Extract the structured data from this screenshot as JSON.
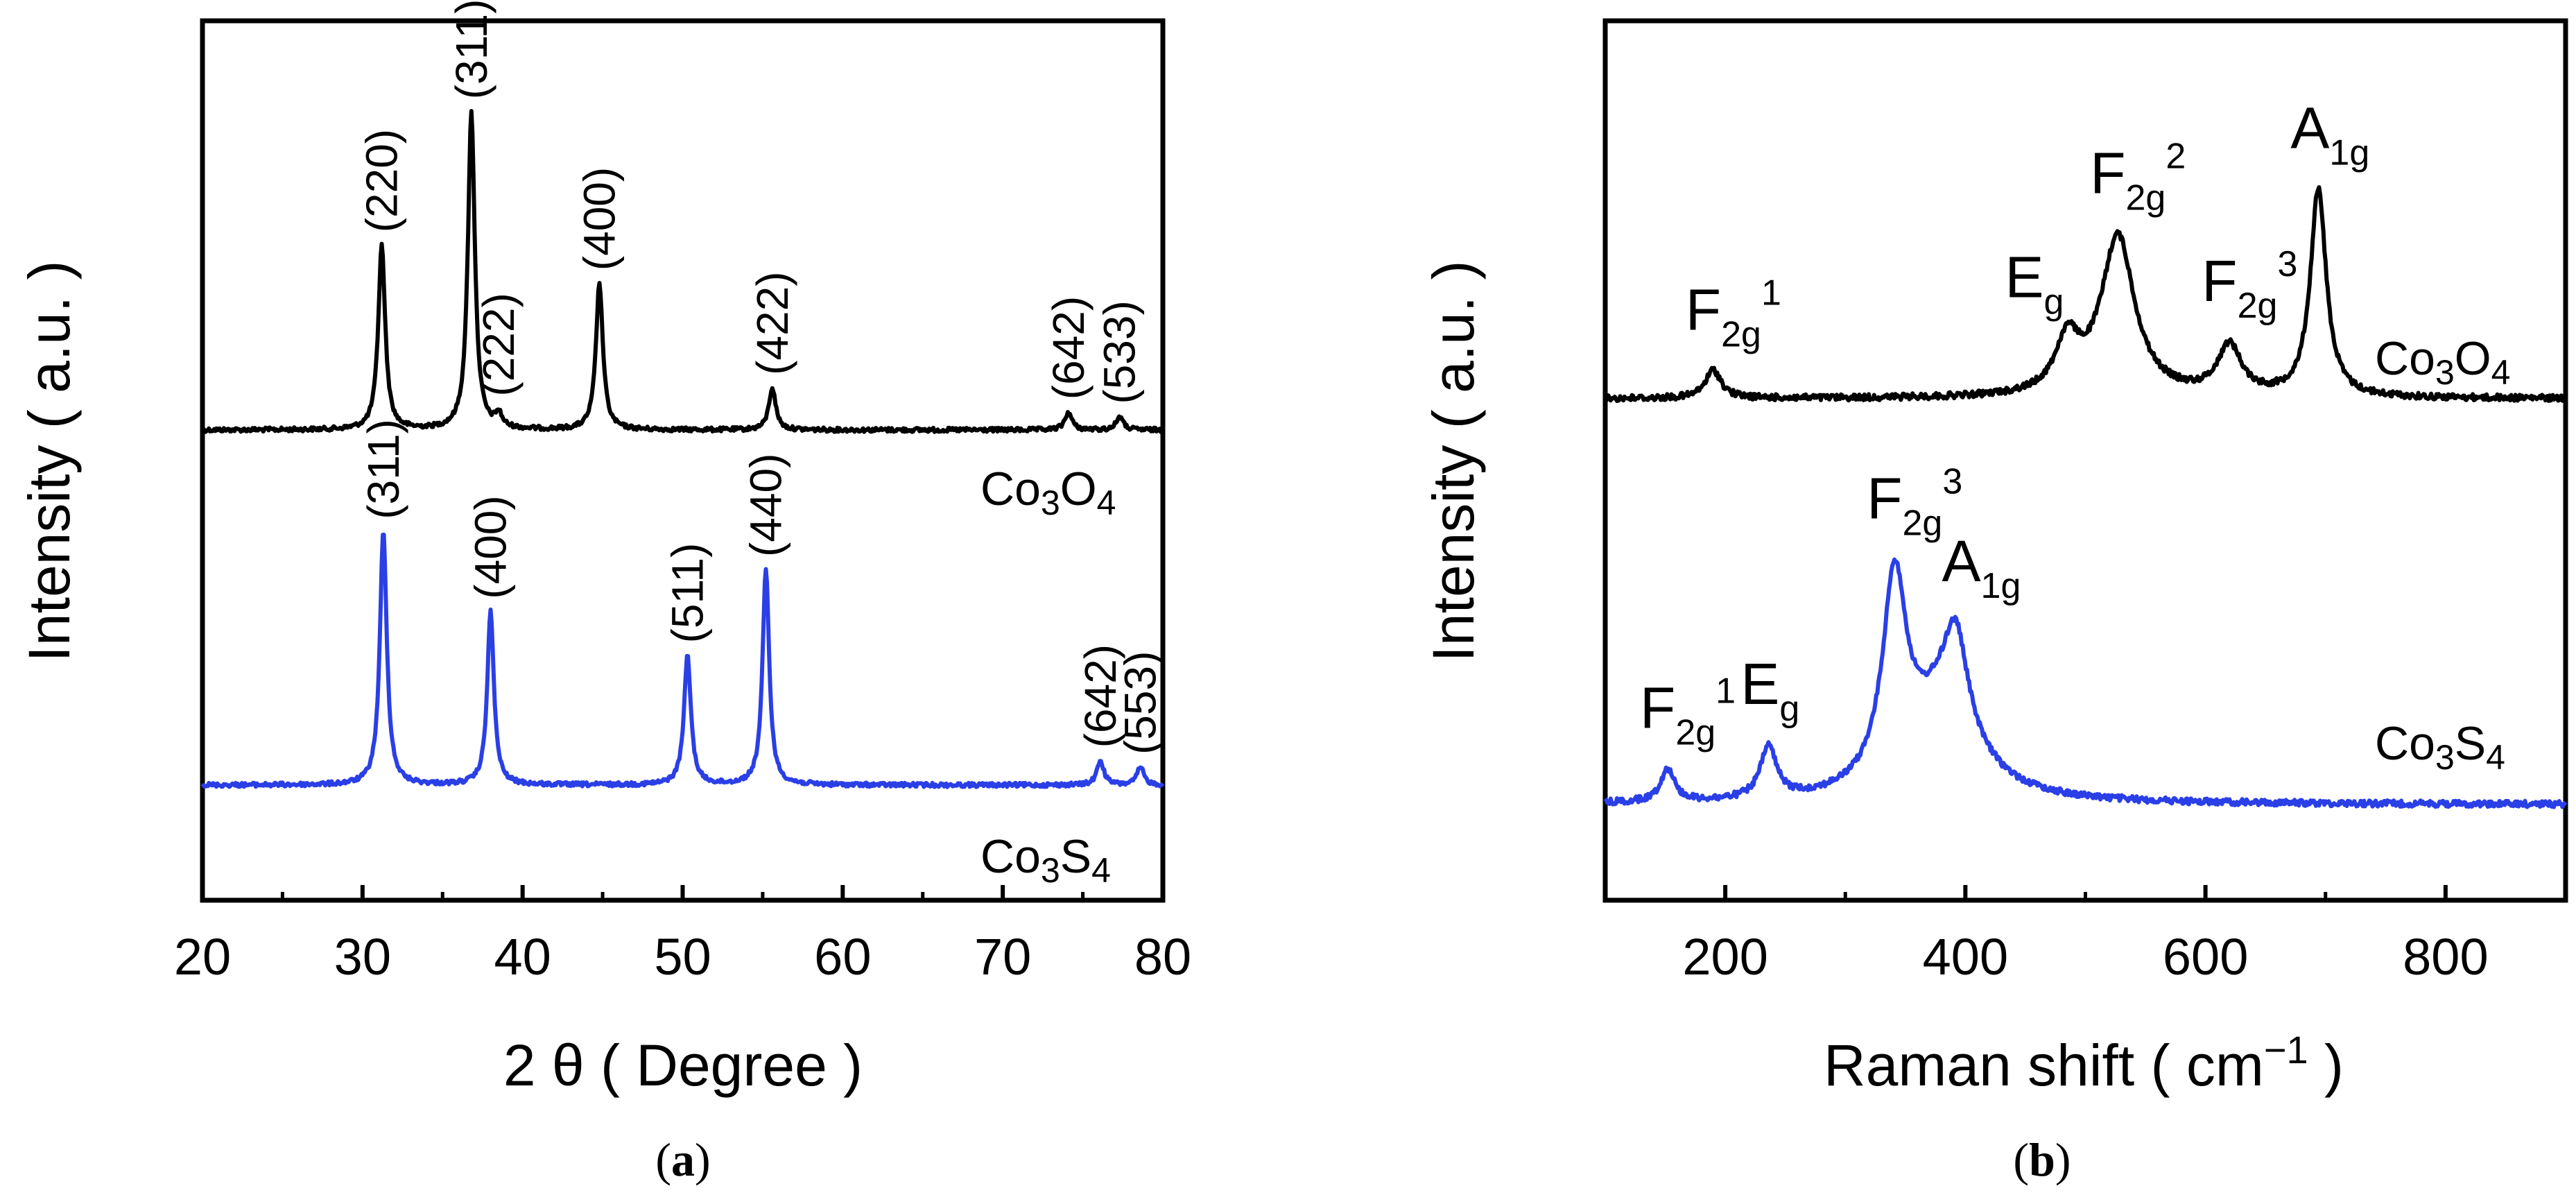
{
  "chart_data": [
    {
      "type": "line",
      "caption_letter": "a",
      "xlabel": "2 θ ( Degree )",
      "ylabel": "Intensity ( a.u. )",
      "xlim": [
        20,
        80
      ],
      "xticks": [
        20,
        30,
        40,
        50,
        60,
        70,
        80
      ],
      "xtick_labels": [
        "20",
        "30",
        "40",
        "50",
        "60",
        "70",
        "80"
      ],
      "series": [
        {
          "name": "Co3O4",
          "label": {
            "base": "Co",
            "n1": "3",
            "el2": "O",
            "n2": "4"
          },
          "color": "#000000",
          "baseline": 1.0,
          "peaks": [
            {
              "x": 31.2,
              "h": 0.83,
              "w": 0.26,
              "label": "(220)"
            },
            {
              "x": 36.8,
              "h": 1.43,
              "w": 0.26,
              "label": "(311)"
            },
            {
              "x": 38.5,
              "h": 0.06,
              "w": 0.25,
              "label": "(222)"
            },
            {
              "x": 44.8,
              "h": 0.66,
              "w": 0.26,
              "label": "(400)"
            },
            {
              "x": 55.6,
              "h": 0.19,
              "w": 0.26,
              "label": "(422)"
            },
            {
              "x": 74.1,
              "h": 0.08,
              "w": 0.26,
              "label": "(642)"
            },
            {
              "x": 77.3,
              "h": 0.06,
              "w": 0.26,
              "label": "(533)"
            }
          ]
        },
        {
          "name": "Co3S4",
          "label": {
            "base": "Co",
            "n1": "3",
            "el2": "S",
            "n2": "4"
          },
          "color": "#2a3fe6",
          "baseline": 0.0,
          "peaks": [
            {
              "x": 31.3,
              "h": 1.14,
              "w": 0.26,
              "label": "(311)"
            },
            {
              "x": 38.0,
              "h": 0.78,
              "w": 0.25,
              "label": "(400)"
            },
            {
              "x": 50.3,
              "h": 0.58,
              "w": 0.26,
              "label": "(511)"
            },
            {
              "x": 55.2,
              "h": 0.97,
              "w": 0.25,
              "label": "(440)"
            },
            {
              "x": 76.1,
              "h": 0.11,
              "w": 0.26,
              "label": "(642)"
            },
            {
              "x": 78.6,
              "h": 0.08,
              "w": 0.26,
              "label": "(553)"
            }
          ]
        }
      ]
    },
    {
      "type": "line",
      "caption_letter": "b",
      "xlabel": "Raman shift ( cm",
      "xlabel_sup": "−1",
      "xlabel_end": " )",
      "ylabel": "Intensity ( a.u. )",
      "xlim": [
        100,
        900
      ],
      "xticks": [
        200,
        400,
        600,
        800
      ],
      "xtick_labels": [
        "200",
        "400",
        "600",
        "800"
      ],
      "series": [
        {
          "name": "Co3O4",
          "label": {
            "base": "Co",
            "n1": "3",
            "el2": "O",
            "n2": "4"
          },
          "color": "#000000",
          "baseline": 1.0,
          "peaks": [
            {
              "x": 190,
              "h": 0.12,
              "w": 8,
              "mode": {
                "base": "F",
                "sub": "2g",
                "sup": "1"
              }
            },
            {
              "x": 485,
              "h": 0.22,
              "w": 12,
              "mode": {
                "base": "E",
                "sub": "g",
                "sup": ""
              }
            },
            {
              "x": 527,
              "h": 0.68,
              "w": 17,
              "mode": {
                "base": "F",
                "sub": "2g",
                "sup": "2"
              }
            },
            {
              "x": 620,
              "h": 0.21,
              "w": 12,
              "mode": {
                "base": "F",
                "sub": "2g",
                "sup": "3"
              }
            },
            {
              "x": 694,
              "h": 0.88,
              "w": 8,
              "mode": {
                "base": "A",
                "sub": "1g",
                "sup": ""
              }
            }
          ]
        },
        {
          "name": "Co3S4",
          "label": {
            "base": "Co",
            "n1": "3",
            "el2": "S",
            "n2": "4"
          },
          "color": "#2a3fe6",
          "baseline": 0.0,
          "peaks": [
            {
              "x": 152,
              "h": 0.14,
              "w": 7,
              "mode": {
                "base": "F",
                "sub": "2g",
                "sup": "1"
              }
            },
            {
              "x": 236,
              "h": 0.22,
              "w": 8,
              "mode": {
                "base": "E",
                "sub": "g",
                "sup": ""
              }
            },
            {
              "x": 341,
              "h": 0.85,
              "w": 12,
              "mode": {
                "base": "F",
                "sub": "2g",
                "sup": "3"
              }
            },
            {
              "x": 380,
              "h": 0.38,
              "w": 35,
              "mode": null
            },
            {
              "x": 392,
              "h": 0.4,
              "w": 12,
              "mode": {
                "base": "A",
                "sub": "1g",
                "sup": ""
              }
            }
          ]
        }
      ]
    }
  ]
}
